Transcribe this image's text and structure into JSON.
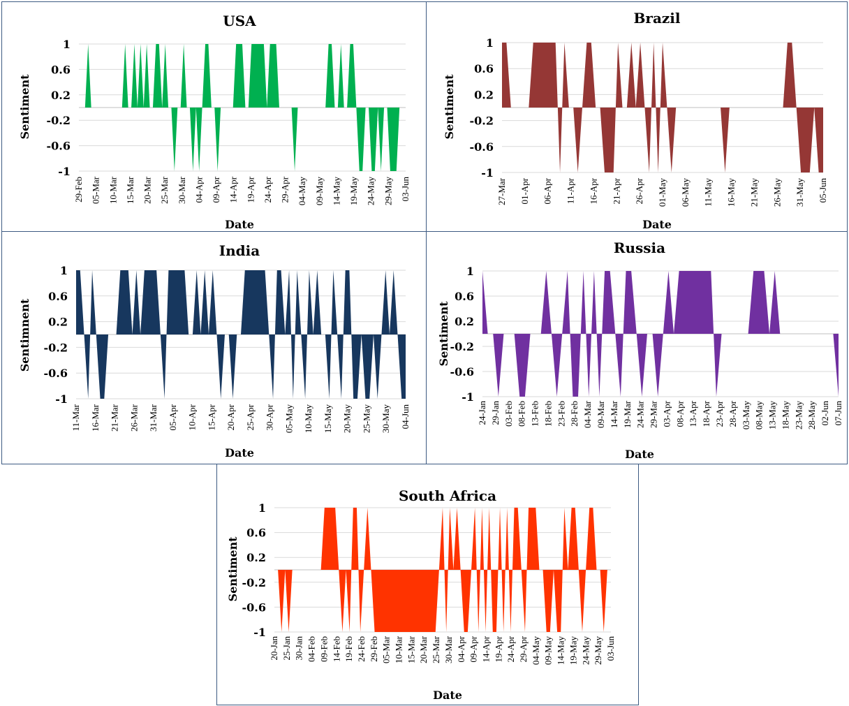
{
  "chart_data": [
    {
      "type": "area",
      "title": "USA",
      "ylabel": "Sentiment",
      "xlabel": "Date",
      "ylim": [
        -1,
        1
      ],
      "yticks": [
        "1",
        "0.6",
        "0.2",
        "-0.2",
        "-0.6",
        "-1"
      ],
      "x_tick_labels": [
        "29-Feb",
        "05-Mar",
        "10-Mar",
        "15-Mar",
        "20-Mar",
        "25-Mar",
        "30-Mar",
        "04-Apr",
        "09-Apr",
        "14-Apr",
        "19-Apr",
        "24-Apr",
        "29-Apr",
        "04-May",
        "09-May",
        "14-May",
        "19-May",
        "24-May",
        "29-May",
        "03-Jun"
      ],
      "color": "#00b050",
      "grid": true,
      "series": [
        {
          "values": [
            0,
            0,
            0,
            1,
            0,
            0,
            0,
            0,
            0,
            0,
            0,
            0,
            0,
            0,
            0,
            1,
            0,
            0,
            1,
            0,
            1,
            0,
            1,
            0,
            0,
            1,
            1,
            0,
            1,
            0,
            0,
            -1,
            0,
            0,
            1,
            0,
            0,
            -1,
            0,
            -1,
            0,
            1,
            1,
            0,
            0,
            -1,
            0,
            0,
            0,
            0,
            0,
            1,
            1,
            1,
            0,
            0,
            1,
            1,
            1,
            1,
            1,
            0,
            1,
            1,
            1,
            0,
            0,
            0,
            0,
            0,
            -1,
            0,
            0,
            0,
            0,
            0,
            0,
            0,
            0,
            0,
            0,
            1,
            1,
            0,
            0,
            1,
            0,
            0,
            1,
            1,
            0,
            -1,
            -1,
            0,
            0,
            -1,
            -1,
            0,
            -1,
            0,
            0,
            -1,
            -1,
            -1,
            0,
            0,
            0
          ]
        }
      ]
    },
    {
      "type": "area",
      "title": "Brazil",
      "ylabel": "Sentiment",
      "xlabel": "Date",
      "ylim": [
        -1,
        1
      ],
      "yticks": [
        "1",
        "0.6",
        "0.2",
        "-0.2",
        "-0.6",
        "-1"
      ],
      "x_tick_labels": [
        "27-Mar",
        "01-Apr",
        "06-Apr",
        "11-Apr",
        "16-Apr",
        "21-Apr",
        "26-Apr",
        "01-May",
        "06-May",
        "11-May",
        "16-May",
        "21-May",
        "26-May",
        "31-May",
        "05-Jun"
      ],
      "color": "#953735",
      "grid": true,
      "series": [
        {
          "values": [
            1,
            1,
            0,
            0,
            0,
            0,
            0,
            1,
            1,
            1,
            1,
            1,
            1,
            -1,
            1,
            0,
            0,
            -1,
            0,
            1,
            1,
            0,
            0,
            -1,
            -1,
            -1,
            1,
            0,
            0,
            1,
            0,
            1,
            0,
            -1,
            1,
            -1,
            1,
            0,
            -1,
            0,
            0,
            0,
            0,
            0,
            0,
            0,
            0,
            0,
            0,
            0,
            -1,
            0,
            0,
            0,
            0,
            0,
            0,
            0,
            0,
            0,
            0,
            0,
            0,
            0,
            1,
            1,
            0,
            -1,
            -1,
            -1,
            0,
            -1,
            -1
          ]
        }
      ]
    },
    {
      "type": "area",
      "title": "India",
      "ylabel": "Sentimnent",
      "xlabel": "Date",
      "ylim": [
        -1,
        1
      ],
      "yticks": [
        "1",
        "0.6",
        "0.2",
        "-0.2",
        "-0.6",
        "-1"
      ],
      "x_tick_labels": [
        "11-Mar",
        "16-Mar",
        "21-Mar",
        "26-Mar",
        "31-Mar",
        "05-Apr",
        "10-Apr",
        "15-Apr",
        "20-Apr",
        "25-Apr",
        "30-Apr",
        "05-May",
        "10-May",
        "15-May",
        "20-May",
        "25-May",
        "30-May",
        "04-Jun"
      ],
      "color": "#17375e",
      "grid": true,
      "series": [
        {
          "values": [
            1,
            1,
            0,
            -1,
            1,
            0,
            -1,
            -1,
            0,
            0,
            0,
            1,
            1,
            1,
            0,
            1,
            0,
            1,
            1,
            1,
            1,
            0,
            -1,
            1,
            1,
            1,
            1,
            1,
            0,
            0,
            1,
            0,
            1,
            0,
            1,
            0,
            -1,
            0,
            0,
            -1,
            0,
            0,
            1,
            1,
            1,
            1,
            1,
            1,
            0,
            -1,
            1,
            1,
            0,
            1,
            -1,
            1,
            0,
            -1,
            1,
            0,
            1,
            0,
            0,
            -1,
            1,
            0,
            -1,
            1,
            1,
            -1,
            -1,
            0,
            -1,
            -1,
            0,
            -1,
            0,
            1,
            0,
            1,
            0,
            -1,
            -1
          ]
        }
      ]
    },
    {
      "type": "area",
      "title": "Russia",
      "ylabel": "Sentiment",
      "xlabel": "Date",
      "ylim": [
        -1,
        1
      ],
      "yticks": [
        "1",
        "0.6",
        "0.2",
        "-0.2",
        "-0.6",
        "-1"
      ],
      "x_tick_labels": [
        "24-Jan",
        "29-Jan",
        "03-Feb",
        "08-Feb",
        "13-Feb",
        "18-Feb",
        "23-Feb",
        "28-Feb",
        "04-Mar",
        "09-Mar",
        "14-Mar",
        "19-Mar",
        "24-Mar",
        "29-Mar",
        "03-Apr",
        "08-Apr",
        "13-Apr",
        "18-Apr",
        "23-Apr",
        "28-Apr",
        "03-May",
        "08-May",
        "13-May",
        "18-May",
        "23-May",
        "28-May",
        "02-Jun",
        "07-Jun"
      ],
      "color": "#7030a0",
      "grid": true,
      "series": [
        {
          "values": [
            1,
            0,
            0,
            -1,
            0,
            0,
            0,
            -1,
            -1,
            0,
            0,
            0,
            1,
            0,
            -1,
            0,
            1,
            -1,
            -1,
            1,
            -1,
            1,
            -1,
            1,
            1,
            0,
            -1,
            1,
            1,
            0,
            -1,
            0,
            0,
            -1,
            0,
            1,
            0,
            1,
            1,
            1,
            1,
            1,
            1,
            1,
            -1,
            0,
            0,
            0,
            0,
            0,
            0,
            1,
            1,
            1,
            0,
            1,
            0,
            0,
            0,
            0,
            0,
            0,
            0,
            0,
            0,
            0,
            0,
            -1
          ]
        }
      ]
    },
    {
      "type": "area",
      "title": "South Africa",
      "ylabel": "Sentiment",
      "xlabel": "Date",
      "ylim": [
        -1,
        1
      ],
      "yticks": [
        "1",
        "0.6",
        "0.2",
        "-0.2",
        "-0.6",
        "-1"
      ],
      "x_tick_labels": [
        "20-Jan",
        "25-Jan",
        "30-Jan",
        "04-Feb",
        "09-Feb",
        "14-Feb",
        "19-Feb",
        "24-Feb",
        "29-Feb",
        "05-Mar",
        "10-Mar",
        "15-Mar",
        "20-Mar",
        "25-Mar",
        "30-Mar",
        "04-Apr",
        "09-Apr",
        "14-Apr",
        "19-Apr",
        "24-Apr",
        "29-Apr",
        "04-May",
        "09-May",
        "14-May",
        "19-May",
        "24-May",
        "29-May",
        "03-Jun"
      ],
      "color": "#ff3300",
      "grid": true,
      "series": [
        {
          "values": [
            0,
            0,
            -1,
            0,
            -1,
            0,
            0,
            0,
            0,
            0,
            0,
            0,
            0,
            0,
            1,
            1,
            1,
            1,
            0,
            -1,
            0,
            -1,
            1,
            1,
            -1,
            0,
            1,
            0,
            -1,
            -1,
            -1,
            -1,
            -1,
            -1,
            -1,
            -1,
            -1,
            -1,
            -1,
            -1,
            -1,
            -1,
            -1,
            -1,
            -1,
            -1,
            0,
            1,
            -1,
            1,
            0,
            1,
            0,
            -1,
            -1,
            0,
            1,
            -1,
            1,
            -1,
            1,
            -1,
            -1,
            1,
            -1,
            1,
            -1,
            1,
            1,
            0,
            -1,
            1,
            1,
            1,
            0,
            0,
            -1,
            -1,
            0,
            -1,
            -1,
            1,
            0,
            1,
            1,
            0,
            -1,
            0,
            1,
            1,
            0,
            0,
            -1,
            0,
            0
          ]
        }
      ]
    }
  ]
}
